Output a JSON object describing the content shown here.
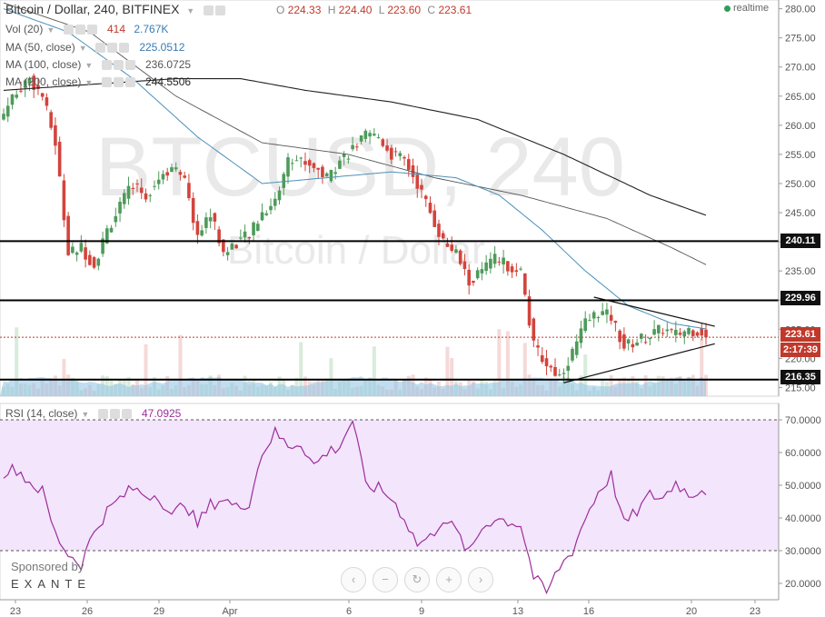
{
  "header": {
    "title": "Bitcoin / Dollar, 240, BITFINEX",
    "ohlc": {
      "o_label": "O",
      "o": "224.33",
      "h_label": "H",
      "h": "224.40",
      "l_label": "L",
      "l": "223.60",
      "c_label": "C",
      "c": "223.61"
    },
    "realtime_label": "realtime"
  },
  "indicators": {
    "vol": {
      "label": "Vol (20)",
      "v1": "414",
      "v2": "2.767K"
    },
    "ma50": {
      "label": "MA (50, close)",
      "value": "225.0512"
    },
    "ma100": {
      "label": "MA (100, close)",
      "value": "236.0725"
    },
    "ma200": {
      "label": "MA (200, close)",
      "value": "244.5506"
    },
    "rsi": {
      "label": "RSI (14, close)",
      "value": "47.0925"
    }
  },
  "watermark": {
    "symbol": "BTCUSD, 240",
    "name": "Bitcoin / Dollar"
  },
  "sponsor": {
    "line1": "Sponsored by",
    "line2": "EXANTE"
  },
  "nav_buttons": [
    "‹",
    "−",
    "↻",
    "+",
    "›"
  ],
  "colors": {
    "up": "#4e9a5a",
    "down": "#d2443c",
    "ma50": "#4a90b8",
    "ma100": "#555555",
    "ma200": "#222222",
    "rsi": "#9c2d9c",
    "rsi_band": "#f3e5fb",
    "volume": "#8ec3e6",
    "current_price": "#c0392b"
  },
  "chart_data": [
    {
      "type": "candlestick",
      "title": "Bitcoin / Dollar, 240, BITFINEX",
      "ylim": [
        213.5,
        281.5
      ],
      "y_ticks": [
        215,
        220,
        225,
        230,
        235,
        240,
        245,
        250,
        255,
        260,
        265,
        270,
        275,
        280
      ],
      "y_tick_labels": [
        "215.00",
        "220.00",
        "225.00",
        "230.00",
        "235.00",
        "240.00",
        "245.00",
        "250.00",
        "255.00",
        "260.00",
        "265.00",
        "270.00",
        "275.00",
        "280.00"
      ],
      "x_tick_labels": [
        "23",
        "26",
        "29",
        "Apr",
        "6",
        "9",
        "13",
        "16",
        "20",
        "23"
      ],
      "horizontal_levels": [
        240.11,
        229.96,
        216.35
      ],
      "horizontal_level_labels": [
        "240.11",
        "229.96",
        "216.35"
      ],
      "current_price": 223.61,
      "current_price_label": "223.61",
      "countdown_label": "2:17:39",
      "anchors_close": [
        [
          0,
          262
        ],
        [
          3,
          266
        ],
        [
          6,
          268
        ],
        [
          9,
          265
        ],
        [
          12,
          257
        ],
        [
          15,
          238
        ],
        [
          18,
          239
        ],
        [
          21,
          236
        ],
        [
          24,
          242
        ],
        [
          27,
          246
        ],
        [
          30,
          250
        ],
        [
          33,
          248
        ],
        [
          36,
          251
        ],
        [
          39,
          253
        ],
        [
          42,
          250
        ],
        [
          45,
          241
        ],
        [
          48,
          245
        ],
        [
          51,
          238
        ],
        [
          54,
          240
        ],
        [
          57,
          241
        ],
        [
          60,
          245
        ],
        [
          63,
          247
        ],
        [
          66,
          254
        ],
        [
          69,
          254
        ],
        [
          72,
          253
        ],
        [
          75,
          251
        ],
        [
          78,
          254
        ],
        [
          81,
          256
        ],
        [
          84,
          258
        ],
        [
          87,
          258
        ],
        [
          90,
          255
        ],
        [
          93,
          254
        ],
        [
          96,
          250
        ],
        [
          99,
          245
        ],
        [
          102,
          240
        ],
        [
          105,
          238
        ],
        [
          108,
          233
        ],
        [
          111,
          235
        ],
        [
          114,
          237
        ],
        [
          117,
          236
        ],
        [
          120,
          235
        ],
        [
          123,
          222
        ],
        [
          126,
          219
        ],
        [
          129,
          217
        ],
        [
          132,
          221
        ],
        [
          135,
          226
        ],
        [
          138,
          228
        ],
        [
          141,
          227
        ],
        [
          144,
          222
        ],
        [
          147,
          223
        ],
        [
          150,
          224
        ],
        [
          153,
          225
        ],
        [
          156,
          224
        ],
        [
          159,
          225
        ],
        [
          162,
          224.6
        ],
        [
          163,
          223.61
        ]
      ],
      "moving_averages": {
        "ma50": [
          [
            0,
            280
          ],
          [
            15,
            276
          ],
          [
            30,
            268
          ],
          [
            45,
            258
          ],
          [
            60,
            250
          ],
          [
            75,
            251
          ],
          [
            90,
            252
          ],
          [
            105,
            251
          ],
          [
            115,
            248
          ],
          [
            125,
            242
          ],
          [
            135,
            235
          ],
          [
            145,
            229
          ],
          [
            155,
            226
          ],
          [
            163,
            225.05
          ]
        ],
        "ma100": [
          [
            0,
            281
          ],
          [
            20,
            276
          ],
          [
            40,
            265
          ],
          [
            60,
            257
          ],
          [
            80,
            255
          ],
          [
            100,
            251
          ],
          [
            120,
            248
          ],
          [
            140,
            244
          ],
          [
            155,
            239
          ],
          [
            163,
            236.07
          ]
        ],
        "ma200": [
          [
            0,
            266
          ],
          [
            20,
            267
          ],
          [
            40,
            268
          ],
          [
            55,
            268
          ],
          [
            70,
            266
          ],
          [
            90,
            264
          ],
          [
            110,
            261
          ],
          [
            130,
            255
          ],
          [
            150,
            248
          ],
          [
            163,
            244.55
          ]
        ]
      },
      "trend_lines": [
        {
          "from": [
            137,
            230.5
          ],
          "to": [
            164,
            225.5
          ]
        },
        {
          "from": [
            130,
            215.8
          ],
          "to": [
            164,
            222.5
          ]
        }
      ]
    },
    {
      "type": "line",
      "title": "RSI (14, close)",
      "ylim": [
        15,
        75
      ],
      "y_ticks": [
        20,
        30,
        40,
        50,
        60,
        70
      ],
      "y_tick_labels": [
        "20.0000",
        "30.0000",
        "40.0000",
        "50.0000",
        "60.0000",
        "70.0000"
      ],
      "band": [
        30,
        70
      ],
      "values_anchor": [
        [
          0,
          54
        ],
        [
          3,
          55
        ],
        [
          6,
          51
        ],
        [
          9,
          48
        ],
        [
          12,
          35
        ],
        [
          15,
          29
        ],
        [
          18,
          26
        ],
        [
          21,
          36
        ],
        [
          24,
          42
        ],
        [
          27,
          46
        ],
        [
          30,
          49
        ],
        [
          33,
          47
        ],
        [
          36,
          47
        ],
        [
          39,
          40
        ],
        [
          42,
          45
        ],
        [
          45,
          38
        ],
        [
          48,
          44
        ],
        [
          51,
          46
        ],
        [
          54,
          43
        ],
        [
          57,
          45
        ],
        [
          60,
          60
        ],
        [
          63,
          66
        ],
        [
          66,
          62
        ],
        [
          69,
          63
        ],
        [
          72,
          56
        ],
        [
          75,
          60
        ],
        [
          78,
          62
        ],
        [
          81,
          70
        ],
        [
          84,
          50
        ],
        [
          87,
          49
        ],
        [
          90,
          46
        ],
        [
          93,
          40
        ],
        [
          96,
          32
        ],
        [
          99,
          34
        ],
        [
          102,
          40
        ],
        [
          105,
          36
        ],
        [
          108,
          29
        ],
        [
          111,
          37
        ],
        [
          114,
          40
        ],
        [
          117,
          39
        ],
        [
          120,
          38
        ],
        [
          123,
          22
        ],
        [
          126,
          17
        ],
        [
          129,
          25
        ],
        [
          132,
          30
        ],
        [
          135,
          40
        ],
        [
          138,
          48
        ],
        [
          141,
          53
        ],
        [
          144,
          38
        ],
        [
          147,
          42
        ],
        [
          150,
          47
        ],
        [
          153,
          46
        ],
        [
          156,
          51
        ],
        [
          159,
          47
        ],
        [
          162,
          49
        ],
        [
          163,
          47.0925
        ]
      ],
      "last_label": "47.0925"
    }
  ]
}
